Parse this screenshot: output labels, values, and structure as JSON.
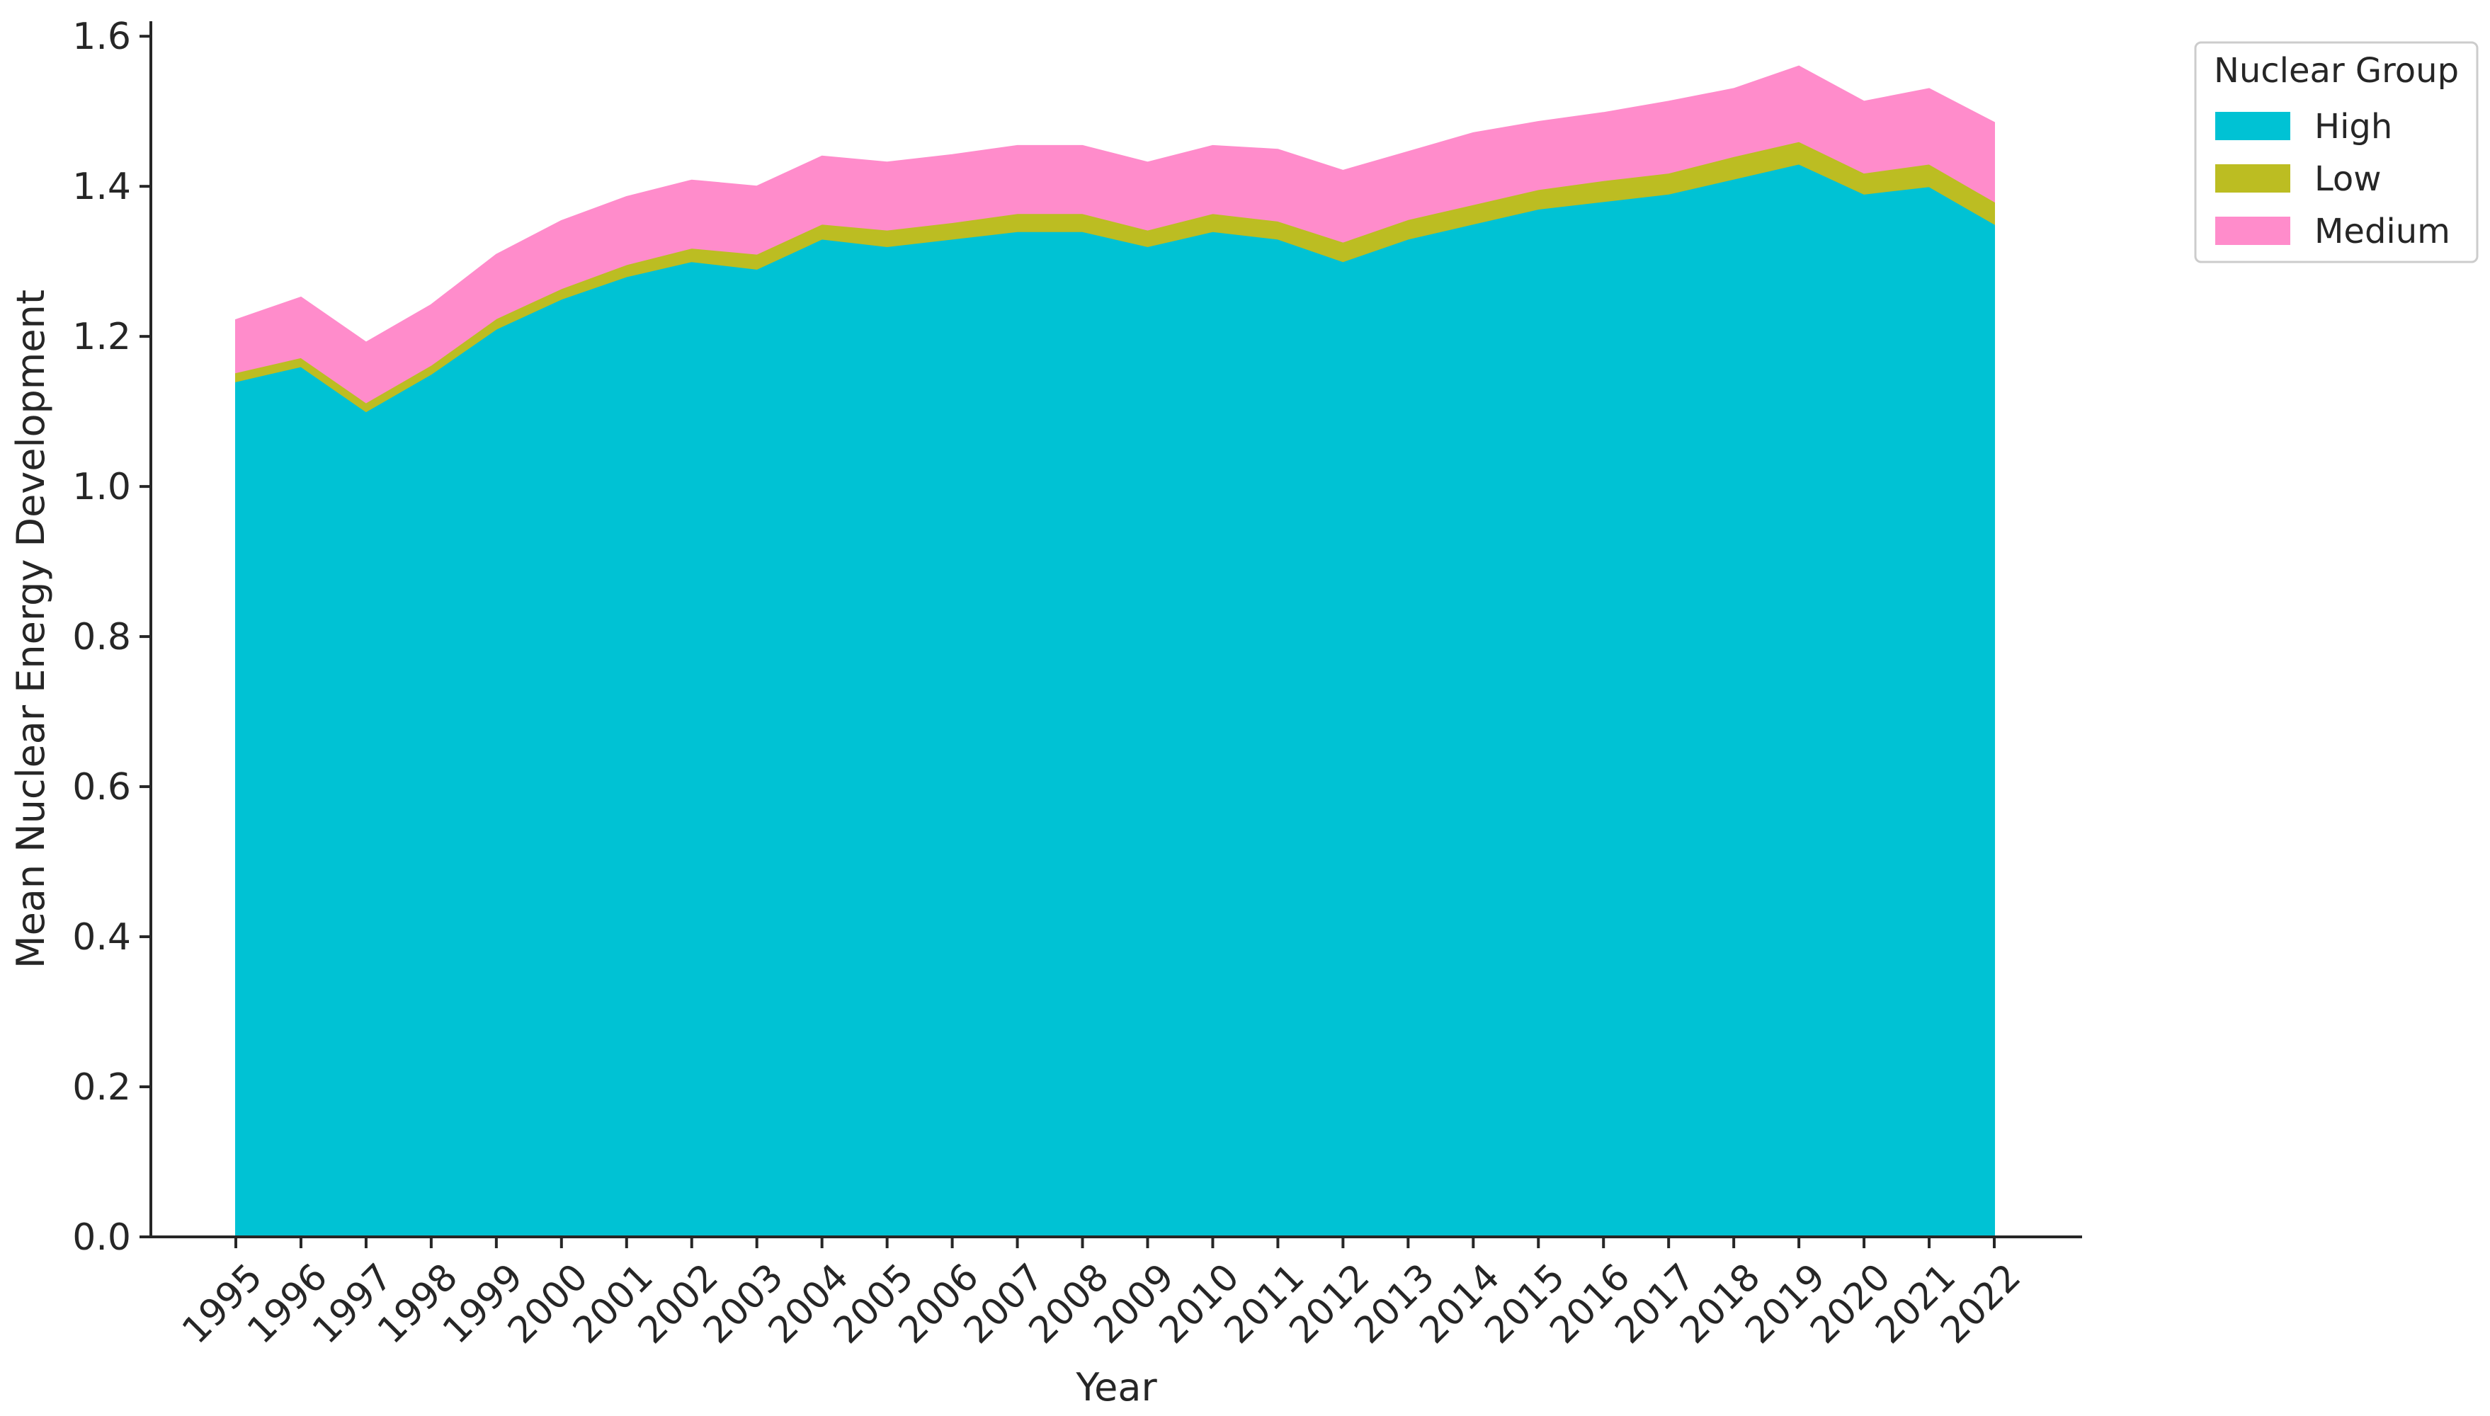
{
  "chart_data": {
    "type": "area",
    "stacked": true,
    "title": "",
    "xlabel": "Year",
    "ylabel": "Mean Nuclear Energy Development",
    "ylim": [
      0,
      1.62
    ],
    "yticks": [
      0.0,
      0.2,
      0.4,
      0.6,
      0.8,
      1.0,
      1.2,
      1.4,
      1.6
    ],
    "ytick_labels": [
      "0.0",
      "0.2",
      "0.4",
      "0.6",
      "0.8",
      "1.0",
      "1.2",
      "1.4",
      "1.6"
    ],
    "grid": false,
    "legend": {
      "title": "Nuclear Group",
      "placement": "upper-right-outside"
    },
    "x": [
      "1995",
      "1996",
      "1997",
      "1998",
      "1999",
      "2000",
      "2001",
      "2002",
      "2003",
      "2004",
      "2005",
      "2006",
      "2007",
      "2008",
      "2009",
      "2010",
      "2011",
      "2012",
      "2013",
      "2014",
      "2015",
      "2016",
      "2017",
      "2018",
      "2019",
      "2020",
      "2021",
      "2022"
    ],
    "series": [
      {
        "name": "High",
        "color": "#00c2d4",
        "values": [
          1.14,
          1.16,
          1.1,
          1.15,
          1.21,
          1.25,
          1.28,
          1.3,
          1.29,
          1.33,
          1.32,
          1.33,
          1.34,
          1.34,
          1.32,
          1.34,
          1.33,
          1.3,
          1.33,
          1.35,
          1.37,
          1.38,
          1.39,
          1.41,
          1.43,
          1.39,
          1.4,
          1.35
        ]
      },
      {
        "name": "Low",
        "color": "#bcbd22",
        "values": [
          0.012,
          0.012,
          0.012,
          0.012,
          0.014,
          0.014,
          0.016,
          0.018,
          0.02,
          0.02,
          0.022,
          0.022,
          0.024,
          0.024,
          0.022,
          0.024,
          0.024,
          0.026,
          0.026,
          0.026,
          0.026,
          0.028,
          0.028,
          0.03,
          0.03,
          0.028,
          0.03,
          0.03
        ]
      },
      {
        "name": "Medium",
        "color": "#ff8ccb",
        "values": [
          0.07,
          0.08,
          0.08,
          0.08,
          0.085,
          0.09,
          0.09,
          0.09,
          0.09,
          0.09,
          0.09,
          0.09,
          0.09,
          0.09,
          0.09,
          0.09,
          0.095,
          0.095,
          0.09,
          0.095,
          0.09,
          0.09,
          0.095,
          0.09,
          0.1,
          0.095,
          0.1,
          0.105
        ]
      }
    ]
  }
}
